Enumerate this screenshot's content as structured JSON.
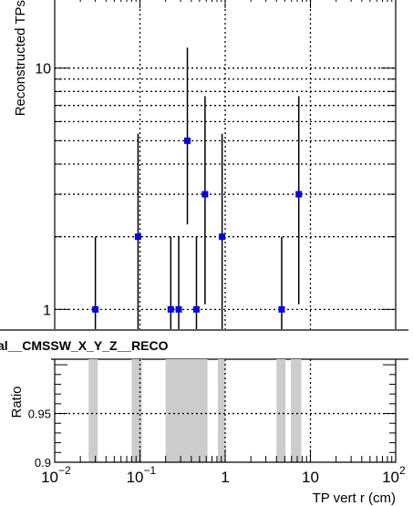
{
  "chart_data": [
    {
      "type": "scatter",
      "title": "",
      "xlabel": "TP vert r (cm)",
      "ylabel": "Reconstructed TPs",
      "x_scale": "log",
      "y_scale": "log",
      "xlim": [
        0.01,
        100
      ],
      "ylim": [
        0.8,
        20
      ],
      "y_tick_labels": [
        {
          "value": 1,
          "text": "1"
        },
        {
          "value": 10,
          "text": "10"
        }
      ],
      "grid": true,
      "marker_color": "#0000ee",
      "points": [
        {
          "x": 0.03,
          "y": 1,
          "err_low": 1,
          "err_high": 1
        },
        {
          "x": 0.095,
          "y": 2,
          "err_low": 1.5,
          "err_high": 3.35
        },
        {
          "x": 0.23,
          "y": 1,
          "err_low": 1,
          "err_high": 1
        },
        {
          "x": 0.285,
          "y": 1,
          "err_low": 1,
          "err_high": 1
        },
        {
          "x": 0.36,
          "y": 5,
          "err_low": 2.75,
          "err_high": 7.15
        },
        {
          "x": 0.46,
          "y": 1,
          "err_low": 1,
          "err_high": 1
        },
        {
          "x": 0.58,
          "y": 3,
          "err_low": 1.95,
          "err_high": 4.65
        },
        {
          "x": 0.92,
          "y": 2,
          "err_low": 1.5,
          "err_high": 3.35
        },
        {
          "x": 4.6,
          "y": 1,
          "err_low": 1,
          "err_high": 1
        },
        {
          "x": 7.3,
          "y": 3,
          "err_low": 1.95,
          "err_high": 4.65
        }
      ]
    },
    {
      "type": "bar",
      "title": "",
      "ylabel": "Ratio",
      "xlabel": "TP vert r (cm)",
      "x_scale": "log",
      "xlim": [
        0.01,
        100
      ],
      "ylim": [
        0.9,
        1.03
      ],
      "y_tick_labels": [
        {
          "value": 0.9,
          "text": "0.9"
        },
        {
          "value": 0.95,
          "text": "0.95"
        }
      ],
      "x_tick_labels": [
        {
          "value": 0.01,
          "base": "10",
          "exp": "−2"
        },
        {
          "value": 0.1,
          "base": "10",
          "exp": "−1"
        },
        {
          "value": 1,
          "base": "1",
          "exp": ""
        },
        {
          "value": 10,
          "base": "10",
          "exp": ""
        },
        {
          "value": 100,
          "base": "10",
          "exp": "2"
        }
      ],
      "grid": true,
      "band_color": "#cccccc",
      "bands": [
        {
          "x0": 0.025,
          "x1": 0.032
        },
        {
          "x0": 0.08,
          "x1": 0.105
        },
        {
          "x0": 0.2,
          "x1": 0.62
        },
        {
          "x0": 0.82,
          "x1": 1.0
        },
        {
          "x0": 4.0,
          "x1": 5.1
        },
        {
          "x0": 5.9,
          "x1": 7.8
        }
      ]
    }
  ],
  "legend": {
    "label": "al__CMSSW_X_Y_Z__RECO"
  }
}
